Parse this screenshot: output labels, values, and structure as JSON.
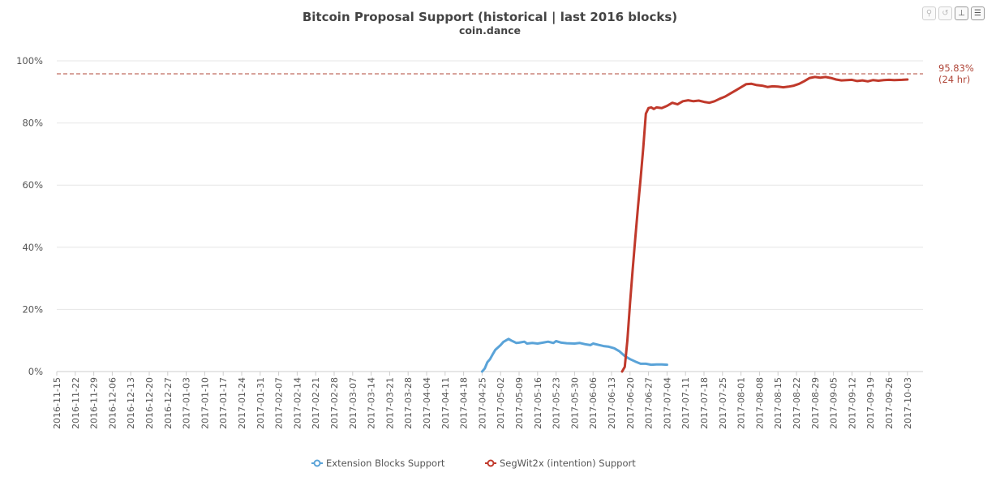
{
  "toolbar": {
    "icons": [
      "zoom-icon",
      "reset-zoom-icon",
      "pan-icon",
      "menu-icon"
    ]
  },
  "chart_data": {
    "type": "line",
    "title": "Bitcoin Proposal Support (historical | last 2016 blocks)",
    "subtitle": "coin.dance",
    "ylim": [
      0,
      100
    ],
    "y_ticks": [
      "0%",
      "20%",
      "40%",
      "60%",
      "80%",
      "100%"
    ],
    "grid": true,
    "legend_position": "bottom-center",
    "x_categories": [
      "2016-11-15",
      "2016-11-22",
      "2016-11-29",
      "2016-12-06",
      "2016-12-13",
      "2016-12-20",
      "2016-12-27",
      "2017-01-03",
      "2017-01-10",
      "2017-01-17",
      "2017-01-24",
      "2017-01-31",
      "2017-02-07",
      "2017-02-14",
      "2017-02-21",
      "2017-02-28",
      "2017-03-07",
      "2017-03-14",
      "2017-03-21",
      "2017-03-28",
      "2017-04-04",
      "2017-04-11",
      "2017-04-18",
      "2017-04-25",
      "2017-05-02",
      "2017-05-09",
      "2017-05-16",
      "2017-05-23",
      "2017-05-30",
      "2017-06-06",
      "2017-06-13",
      "2017-06-20",
      "2017-06-27",
      "2017-07-04",
      "2017-07-11",
      "2017-07-18",
      "2017-07-25",
      "2017-08-01",
      "2017-08-08",
      "2017-08-15",
      "2017-08-22",
      "2017-08-29",
      "2017-09-05",
      "2017-09-12",
      "2017-09-19",
      "2017-09-26",
      "2017-10-03"
    ],
    "reference_line": {
      "value": 95.83,
      "label": "95.83%",
      "sublabel": "(24 hr)",
      "color": "#b0473a"
    },
    "series": [
      {
        "name": "Extension Blocks Support",
        "color": "#5aa3d8",
        "points": [
          [
            "2017-04-25",
            0.0
          ],
          [
            "2017-04-26",
            1.0
          ],
          [
            "2017-04-27",
            3.0
          ],
          [
            "2017-04-28",
            4.0
          ],
          [
            "2017-04-29",
            5.5
          ],
          [
            "2017-04-30",
            7.0
          ],
          [
            "2017-05-02",
            8.5
          ],
          [
            "2017-05-03",
            9.5
          ],
          [
            "2017-05-05",
            10.5
          ],
          [
            "2017-05-06",
            10.0
          ],
          [
            "2017-05-08",
            9.2
          ],
          [
            "2017-05-09",
            9.3
          ],
          [
            "2017-05-11",
            9.6
          ],
          [
            "2017-05-12",
            9.0
          ],
          [
            "2017-05-14",
            9.2
          ],
          [
            "2017-05-16",
            9.0
          ],
          [
            "2017-05-18",
            9.3
          ],
          [
            "2017-05-20",
            9.6
          ],
          [
            "2017-05-22",
            9.2
          ],
          [
            "2017-05-23",
            9.8
          ],
          [
            "2017-05-25",
            9.3
          ],
          [
            "2017-05-27",
            9.1
          ],
          [
            "2017-05-30",
            9.0
          ],
          [
            "2017-06-01",
            9.2
          ],
          [
            "2017-06-03",
            8.8
          ],
          [
            "2017-06-05",
            8.5
          ],
          [
            "2017-06-06",
            9.0
          ],
          [
            "2017-06-08",
            8.6
          ],
          [
            "2017-06-10",
            8.2
          ],
          [
            "2017-06-12",
            8.0
          ],
          [
            "2017-06-14",
            7.5
          ],
          [
            "2017-06-16",
            6.5
          ],
          [
            "2017-06-18",
            5.0
          ],
          [
            "2017-06-20",
            4.0
          ],
          [
            "2017-06-22",
            3.2
          ],
          [
            "2017-06-24",
            2.5
          ],
          [
            "2017-06-26",
            2.5
          ],
          [
            "2017-06-28",
            2.2
          ],
          [
            "2017-06-30",
            2.3
          ],
          [
            "2017-07-02",
            2.3
          ],
          [
            "2017-07-04",
            2.2
          ]
        ]
      },
      {
        "name": "SegWit2x (intention) Support",
        "color": "#c0392b",
        "points": [
          [
            "2017-06-17",
            0.0
          ],
          [
            "2017-06-18",
            1.5
          ],
          [
            "2017-06-19",
            10.0
          ],
          [
            "2017-06-20",
            22.0
          ],
          [
            "2017-06-21",
            33.0
          ],
          [
            "2017-06-22",
            43.0
          ],
          [
            "2017-06-23",
            53.0
          ],
          [
            "2017-06-24",
            62.0
          ],
          [
            "2017-06-25",
            72.0
          ],
          [
            "2017-06-26",
            83.0
          ],
          [
            "2017-06-27",
            84.8
          ],
          [
            "2017-06-28",
            85.0
          ],
          [
            "2017-06-29",
            84.5
          ],
          [
            "2017-06-30",
            85.0
          ],
          [
            "2017-07-02",
            84.8
          ],
          [
            "2017-07-04",
            85.5
          ],
          [
            "2017-07-06",
            86.5
          ],
          [
            "2017-07-08",
            86.0
          ],
          [
            "2017-07-10",
            87.0
          ],
          [
            "2017-07-12",
            87.3
          ],
          [
            "2017-07-14",
            87.0
          ],
          [
            "2017-07-16",
            87.2
          ],
          [
            "2017-07-18",
            86.8
          ],
          [
            "2017-07-20",
            86.5
          ],
          [
            "2017-07-22",
            87.0
          ],
          [
            "2017-07-24",
            87.8
          ],
          [
            "2017-07-26",
            88.5
          ],
          [
            "2017-07-28",
            89.5
          ],
          [
            "2017-07-30",
            90.5
          ],
          [
            "2017-08-01",
            91.5
          ],
          [
            "2017-08-03",
            92.5
          ],
          [
            "2017-08-05",
            92.6
          ],
          [
            "2017-08-07",
            92.2
          ],
          [
            "2017-08-09",
            92.0
          ],
          [
            "2017-08-11",
            91.6
          ],
          [
            "2017-08-13",
            91.8
          ],
          [
            "2017-08-15",
            91.7
          ],
          [
            "2017-08-17",
            91.5
          ],
          [
            "2017-08-19",
            91.7
          ],
          [
            "2017-08-21",
            92.0
          ],
          [
            "2017-08-23",
            92.6
          ],
          [
            "2017-08-25",
            93.5
          ],
          [
            "2017-08-27",
            94.5
          ],
          [
            "2017-08-29",
            94.8
          ],
          [
            "2017-08-31",
            94.6
          ],
          [
            "2017-09-02",
            94.8
          ],
          [
            "2017-09-04",
            94.5
          ],
          [
            "2017-09-06",
            94.0
          ],
          [
            "2017-09-08",
            93.7
          ],
          [
            "2017-09-10",
            93.8
          ],
          [
            "2017-09-12",
            93.9
          ],
          [
            "2017-09-14",
            93.5
          ],
          [
            "2017-09-16",
            93.7
          ],
          [
            "2017-09-18",
            93.4
          ],
          [
            "2017-09-20",
            93.8
          ],
          [
            "2017-09-22",
            93.6
          ],
          [
            "2017-09-24",
            93.8
          ],
          [
            "2017-09-26",
            93.9
          ],
          [
            "2017-09-28",
            93.8
          ],
          [
            "2017-10-01",
            93.9
          ],
          [
            "2017-10-03",
            94.0
          ]
        ]
      }
    ]
  }
}
